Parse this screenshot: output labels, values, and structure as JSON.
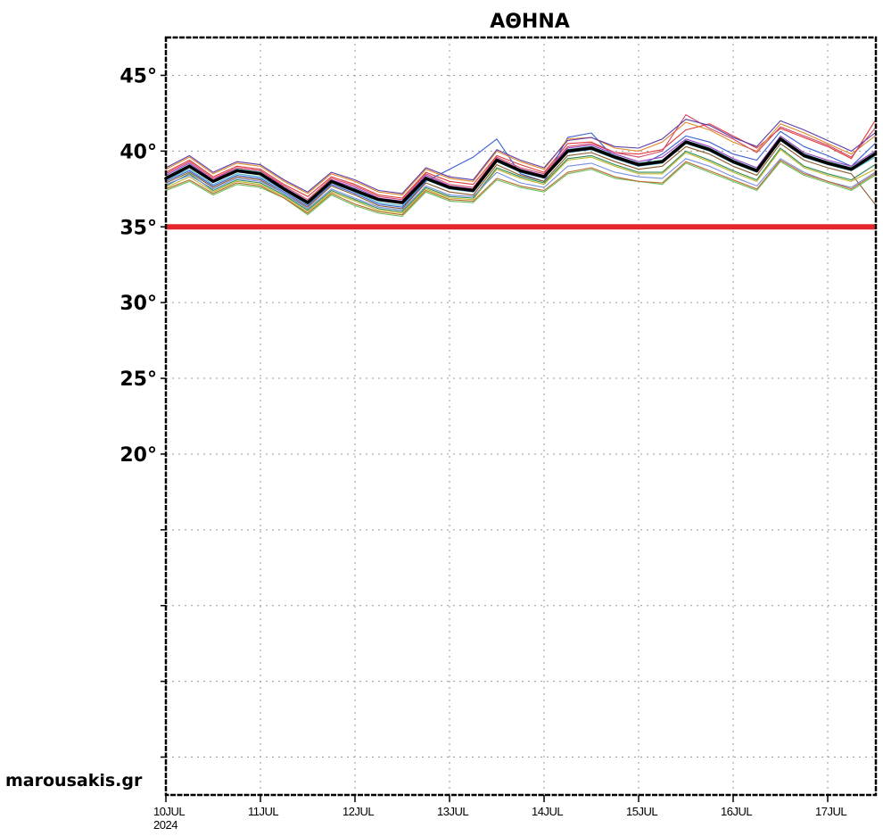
{
  "chart_data": {
    "type": "line",
    "title": "ΑΘΗΝΑ",
    "ylim": [
      -2.5,
      47.5
    ],
    "y_ticks": [
      0,
      5,
      10,
      15,
      20,
      25,
      30,
      35,
      40,
      45
    ],
    "y_tick_labels": [
      {
        "value": 45,
        "label": "45°"
      },
      {
        "value": 40,
        "label": "40°"
      },
      {
        "value": 35,
        "label": "35°"
      },
      {
        "value": 30,
        "label": "30°"
      },
      {
        "value": 25,
        "label": "25°"
      },
      {
        "value": 20,
        "label": "20°"
      }
    ],
    "x_days": [
      "10JUL",
      "11JUL",
      "12JUL",
      "13JUL",
      "14JUL",
      "15JUL",
      "16JUL",
      "17JUL"
    ],
    "x_year": "2024",
    "threshold": {
      "value": 35,
      "color": "#e3262b"
    },
    "mean_color": "#000000",
    "x": [
      0,
      0.25,
      0.5,
      0.75,
      1,
      1.25,
      1.5,
      1.75,
      2,
      2.25,
      2.5,
      2.75,
      3,
      3.25,
      3.5,
      3.75,
      4,
      4.25,
      4.5,
      4.75,
      5,
      5.25,
      5.5,
      5.75,
      6,
      6.25,
      6.5,
      6.75,
      7,
      7.25,
      7.5
    ],
    "series": [
      {
        "name": "mean",
        "color": "#000000",
        "values": [
          38.2,
          39.0,
          38.0,
          38.7,
          38.5,
          37.5,
          36.6,
          38.0,
          37.4,
          36.8,
          36.6,
          38.2,
          37.6,
          37.4,
          39.4,
          38.7,
          38.3,
          40.0,
          40.2,
          39.6,
          39.1,
          39.3,
          40.6,
          40.1,
          39.3,
          38.7,
          40.8,
          39.7,
          39.2,
          38.8,
          39.8
        ]
      },
      {
        "name": "m1",
        "color": "#e03a3a",
        "values": [
          38.6,
          39.4,
          38.3,
          39.0,
          38.8,
          37.8,
          37.0,
          38.3,
          37.8,
          37.1,
          36.9,
          38.6,
          38.0,
          37.8,
          39.7,
          39.1,
          38.6,
          40.5,
          40.6,
          39.9,
          39.8,
          40.1,
          41.4,
          41.8,
          41.0,
          40.2,
          41.5,
          40.9,
          40.3,
          39.5,
          42.0
        ]
      },
      {
        "name": "m2",
        "color": "#2e8b57",
        "values": [
          37.7,
          38.5,
          37.4,
          38.1,
          37.9,
          37.1,
          36.1,
          37.4,
          36.8,
          36.2,
          36.0,
          37.6,
          37.0,
          36.9,
          38.9,
          38.3,
          37.9,
          39.5,
          39.7,
          39.1,
          38.6,
          38.6,
          40.0,
          39.4,
          38.7,
          38.1,
          40.2,
          39.0,
          38.5,
          38.1,
          39.1
        ]
      },
      {
        "name": "m3",
        "color": "#3a5fd0",
        "values": [
          38.0,
          38.7,
          37.7,
          38.4,
          38.2,
          37.3,
          36.4,
          37.8,
          37.2,
          36.5,
          36.3,
          38.0,
          38.8,
          39.6,
          40.8,
          38.5,
          38.0,
          40.9,
          41.2,
          39.5,
          39.0,
          39.8,
          41.0,
          40.6,
          39.8,
          39.4,
          41.3,
          40.3,
          39.7,
          39.0,
          40.5
        ]
      },
      {
        "name": "m4",
        "color": "#8a5a2b",
        "values": [
          37.9,
          38.6,
          37.6,
          38.3,
          38.1,
          37.2,
          36.3,
          37.7,
          37.1,
          36.4,
          36.2,
          37.9,
          37.3,
          37.1,
          39.1,
          38.4,
          38.0,
          39.7,
          39.9,
          39.3,
          38.8,
          39.0,
          40.3,
          39.8,
          39.0,
          38.4,
          40.5,
          39.4,
          38.9,
          38.5,
          36.5
        ]
      },
      {
        "name": "m5",
        "color": "#9b3fc4",
        "values": [
          38.4,
          39.2,
          38.1,
          38.9,
          38.7,
          37.6,
          36.7,
          38.1,
          37.6,
          36.9,
          36.7,
          38.4,
          37.7,
          37.5,
          39.5,
          38.8,
          38.4,
          40.2,
          40.4,
          39.8,
          39.3,
          39.6,
          40.8,
          40.3,
          39.5,
          38.9,
          41.0,
          39.9,
          39.4,
          39.0,
          40.0
        ]
      },
      {
        "name": "m6",
        "color": "#e08a2b",
        "values": [
          38.8,
          39.6,
          38.5,
          39.2,
          39.0,
          38.0,
          37.2,
          38.5,
          38.0,
          37.3,
          37.1,
          38.8,
          38.2,
          38.0,
          40.0,
          39.3,
          38.8,
          40.8,
          40.9,
          40.2,
          40.0,
          40.6,
          41.9,
          41.4,
          40.6,
          40.0,
          41.8,
          41.2,
          40.5,
          39.8,
          41.0
        ]
      },
      {
        "name": "m7",
        "color": "#4bb7d1",
        "values": [
          38.1,
          38.8,
          37.8,
          38.5,
          38.3,
          37.4,
          36.5,
          37.9,
          37.3,
          36.6,
          36.4,
          38.1,
          37.5,
          37.3,
          39.3,
          38.6,
          38.2,
          39.9,
          40.1,
          39.5,
          39.0,
          39.2,
          40.5,
          40.0,
          39.2,
          38.6,
          40.7,
          39.6,
          39.1,
          38.7,
          39.6
        ]
      },
      {
        "name": "m8",
        "color": "#c2b62a",
        "values": [
          37.6,
          38.3,
          37.3,
          38.0,
          37.8,
          37.0,
          36.0,
          37.3,
          36.7,
          36.1,
          35.9,
          37.5,
          36.9,
          36.8,
          38.8,
          38.2,
          37.8,
          39.4,
          39.6,
          39.0,
          38.5,
          38.5,
          39.9,
          39.3,
          38.6,
          38.0,
          40.1,
          38.9,
          38.4,
          38.0,
          38.8
        ]
      },
      {
        "name": "m9",
        "color": "#1f9e8f",
        "values": [
          38.3,
          39.1,
          38.0,
          38.8,
          38.6,
          37.5,
          36.6,
          38.0,
          37.5,
          36.8,
          36.6,
          38.3,
          37.6,
          37.4,
          39.4,
          38.7,
          38.3,
          40.1,
          40.3,
          39.7,
          39.2,
          39.4,
          40.7,
          40.2,
          39.4,
          38.8,
          40.9,
          39.8,
          39.3,
          38.9,
          39.9
        ]
      },
      {
        "name": "m10",
        "color": "#7a8fe0",
        "values": [
          37.8,
          38.4,
          37.5,
          38.2,
          38.0,
          37.2,
          36.2,
          37.5,
          36.9,
          36.3,
          36.1,
          37.7,
          37.1,
          37.0,
          38.6,
          37.9,
          37.6,
          39.0,
          39.2,
          38.6,
          38.3,
          38.2,
          39.5,
          39.0,
          38.3,
          37.7,
          39.5,
          38.6,
          38.0,
          37.6,
          38.6
        ]
      },
      {
        "name": "m11",
        "color": "#d1496b",
        "values": [
          38.5,
          39.3,
          38.2,
          38.9,
          38.7,
          37.7,
          36.8,
          38.2,
          37.7,
          37.0,
          36.8,
          38.5,
          37.8,
          37.6,
          39.6,
          38.9,
          38.5,
          40.3,
          40.5,
          39.9,
          39.6,
          40.0,
          42.4,
          41.5,
          40.8,
          39.9,
          41.6,
          41.0,
          40.4,
          39.6,
          41.5
        ]
      },
      {
        "name": "m12",
        "color": "#6bbf59",
        "values": [
          37.4,
          38.0,
          37.1,
          37.8,
          37.6,
          36.9,
          35.8,
          37.1,
          36.4,
          35.9,
          35.7,
          37.3,
          36.7,
          36.6,
          38.1,
          37.6,
          37.3,
          38.5,
          38.8,
          38.2,
          38.0,
          37.8,
          39.2,
          38.6,
          38.0,
          37.4,
          39.3,
          38.4,
          37.9,
          37.4,
          38.4
        ]
      },
      {
        "name": "m13",
        "color": "#5b3aa8",
        "values": [
          38.9,
          39.7,
          38.6,
          39.3,
          39.1,
          38.1,
          37.3,
          38.6,
          38.1,
          37.4,
          37.2,
          38.9,
          38.3,
          38.1,
          40.1,
          39.4,
          38.9,
          40.7,
          40.9,
          40.3,
          40.2,
          40.8,
          42.1,
          41.7,
          40.9,
          40.3,
          42.0,
          41.4,
          40.7,
          40.0,
          41.2
        ]
      },
      {
        "name": "m14",
        "color": "#b86a2e",
        "values": [
          37.5,
          38.1,
          37.2,
          37.9,
          37.7,
          36.9,
          35.9,
          37.2,
          36.5,
          36.0,
          35.8,
          37.4,
          36.8,
          36.7,
          38.2,
          37.7,
          37.4,
          38.6,
          38.9,
          38.3,
          38.0,
          37.9,
          39.3,
          38.7,
          38.1,
          37.5,
          39.4,
          38.5,
          38.0,
          37.5,
          38.5
        ]
      }
    ]
  },
  "watermark": "marousakis.gr"
}
